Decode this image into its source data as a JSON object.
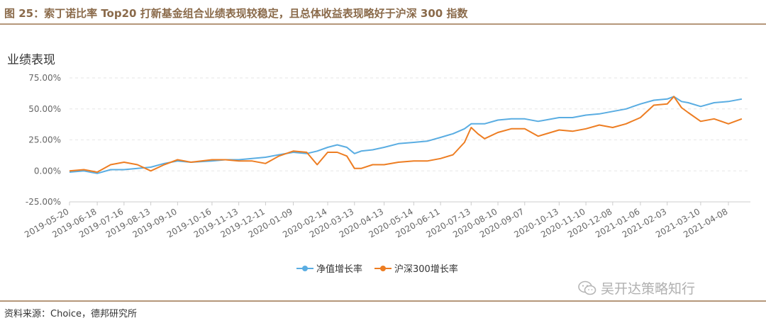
{
  "figure": {
    "title": "图 25：索丁诺比率 Top20 打新基金组合业绩表现较稳定，且总体收益表现略好于沪深 300 指数",
    "panel_label": "业绩表现",
    "source": "资料来源：Choice，德邦研究所",
    "watermark": "吴开达策略知行"
  },
  "colors": {
    "accent": "#b5977a",
    "nav": "#5aade2",
    "hs300": "#ed7d22",
    "grid": "#e6e6e6"
  },
  "chart_data": {
    "type": "line",
    "title": "",
    "xlabel": "",
    "ylabel": "",
    "ylim": [
      -25,
      75
    ],
    "y_unit": "%",
    "y_ticks": [
      "75.00%",
      "50.00%",
      "25.00%",
      "0.00%",
      "-25.00%"
    ],
    "y_tick_values": [
      75,
      50,
      25,
      0,
      -25
    ],
    "grid": "horizontal dashed",
    "legend": "bottom-center",
    "x_tick_labels": [
      "2019-05-20",
      "2019-06-18",
      "2019-07-16",
      "2019-08-13",
      "2019-09-10",
      "2019-10-16",
      "2019-11-13",
      "2019-12-11",
      "2020-01-09",
      "2020-02-14",
      "2020-03-13",
      "2020-04-13",
      "2020-05-14",
      "2020-06-11",
      "2020-07-13",
      "2020-08-10",
      "2020-09-07",
      "2020-10-13",
      "2020-11-10",
      "2020-12-08",
      "2021-01-06",
      "2021-02-03",
      "2021-03-10",
      "2021-04-08"
    ],
    "x": [
      "2019-05-20",
      "2019-06-04",
      "2019-06-18",
      "2019-07-02",
      "2019-07-16",
      "2019-07-30",
      "2019-08-13",
      "2019-08-27",
      "2019-09-10",
      "2019-09-24",
      "2019-10-16",
      "2019-10-30",
      "2019-11-13",
      "2019-11-27",
      "2019-12-11",
      "2019-12-25",
      "2020-01-09",
      "2020-01-23",
      "2020-02-03",
      "2020-02-14",
      "2020-02-24",
      "2020-03-05",
      "2020-03-13",
      "2020-03-20",
      "2020-04-01",
      "2020-04-13",
      "2020-04-28",
      "2020-05-14",
      "2020-05-28",
      "2020-06-11",
      "2020-06-24",
      "2020-07-06",
      "2020-07-13",
      "2020-07-20",
      "2020-07-27",
      "2020-08-10",
      "2020-08-24",
      "2020-09-07",
      "2020-09-21",
      "2020-10-13",
      "2020-10-27",
      "2020-11-10",
      "2020-11-24",
      "2020-12-08",
      "2020-12-22",
      "2021-01-06",
      "2021-01-20",
      "2021-02-03",
      "2021-02-10",
      "2021-02-18",
      "2021-02-25",
      "2021-03-10",
      "2021-03-24",
      "2021-04-08",
      "2021-04-22"
    ],
    "series": [
      {
        "name": "净值增长率",
        "color": "#5aade2",
        "values": [
          -1,
          0,
          -2,
          1,
          1,
          2,
          3,
          6,
          8,
          7,
          8,
          9,
          9,
          10,
          11,
          13,
          15,
          14,
          16,
          19,
          21,
          19,
          14,
          16,
          17,
          19,
          22,
          23,
          24,
          27,
          30,
          34,
          38,
          38,
          38,
          41,
          42,
          42,
          40,
          43,
          43,
          45,
          46,
          48,
          50,
          54,
          57,
          58,
          60,
          56,
          55,
          52,
          55,
          56,
          58
        ]
      },
      {
        "name": "沪深300增长率",
        "color": "#ed7d22",
        "values": [
          0,
          1,
          -1,
          5,
          7,
          5,
          0,
          5,
          9,
          7,
          9,
          9,
          8,
          8,
          6,
          12,
          16,
          15,
          5,
          15,
          15,
          12,
          2,
          2,
          5,
          5,
          7,
          8,
          8,
          10,
          13,
          23,
          35,
          30,
          26,
          31,
          34,
          34,
          28,
          33,
          32,
          34,
          37,
          35,
          38,
          43,
          53,
          54,
          60,
          51,
          47,
          40,
          42,
          38,
          42
        ]
      }
    ]
  }
}
